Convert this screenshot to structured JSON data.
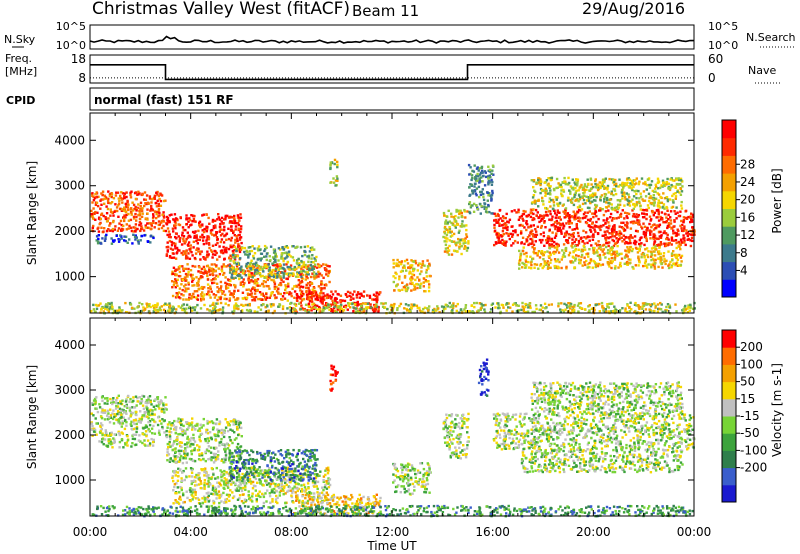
{
  "header": {
    "station": "Christmas Valley West (fitACF)",
    "beam": "Beam 11",
    "date": "29/Aug/2016"
  },
  "noise_panel": {
    "left_label": "N.Sky",
    "right_label": "N.Search",
    "left_ticks": [
      "10^5",
      "10^0"
    ],
    "right_ticks": [
      "10^5",
      "10^0"
    ]
  },
  "freq_panel": {
    "left_label_1": "Freq.",
    "left_label_2": "[MHz]",
    "right_label": "Nave",
    "left_ticks": [
      "18",
      "8"
    ],
    "right_ticks": [
      "60",
      "0"
    ],
    "freq_steps": [
      {
        "start_hour": 0,
        "end_hour": 3,
        "value": 14.5
      },
      {
        "start_hour": 3,
        "end_hour": 15,
        "value": 9.3
      },
      {
        "start_hour": 15,
        "end_hour": 24,
        "value": 14.5
      }
    ],
    "nave_level": 11
  },
  "cpid": {
    "label": "CPID",
    "text": "normal (fast) 151 RF"
  },
  "chart_data": [
    {
      "type": "heatmap",
      "name": "Power",
      "ylabel": "Slant Range [km]",
      "yticks": [
        "1000",
        "2000",
        "3000",
        "4000"
      ],
      "ylim": [
        200,
        4600
      ],
      "xlim": [
        0,
        24
      ],
      "colorbar_label": "Power [dB]",
      "colorbar_ticks": [
        "4",
        "8",
        "12",
        "16",
        "20",
        "24",
        "28"
      ],
      "colorbar_colors": [
        "#0000ff",
        "#2c4eb5",
        "#3c7a8c",
        "#4f9a60",
        "#9bcc3c",
        "#f5d600",
        "#f4a000",
        "#ff6c00",
        "#ff2a00",
        "#ff0000"
      ],
      "echo_regions": [
        {
          "t0": 0.0,
          "t1": 3.0,
          "r0": 2000,
          "r1": 2900,
          "level": 0.8
        },
        {
          "t0": 0.2,
          "t1": 2.5,
          "r0": 1750,
          "r1": 1950,
          "level": 0.2
        },
        {
          "t0": 3.0,
          "t1": 6.0,
          "r0": 1400,
          "r1": 2400,
          "level": 0.9
        },
        {
          "t0": 3.2,
          "t1": 9.5,
          "r0": 500,
          "r1": 1300,
          "level": 0.75
        },
        {
          "t0": 5.5,
          "t1": 9.0,
          "r0": 1000,
          "r1": 1700,
          "level": 0.4
        },
        {
          "t0": 8.0,
          "t1": 11.5,
          "r0": 250,
          "r1": 700,
          "level": 0.95
        },
        {
          "t0": 9.5,
          "t1": 9.8,
          "r0": 3000,
          "r1": 3600,
          "level": 0.5
        },
        {
          "t0": 12.0,
          "t1": 13.5,
          "r0": 700,
          "r1": 1400,
          "level": 0.6
        },
        {
          "t0": 14.0,
          "t1": 15.0,
          "r0": 1500,
          "r1": 2500,
          "level": 0.55
        },
        {
          "t0": 15.0,
          "t1": 16.0,
          "r0": 2400,
          "r1": 3500,
          "level": 0.3
        },
        {
          "t0": 16.0,
          "t1": 24.0,
          "r0": 1700,
          "r1": 2500,
          "level": 0.9
        },
        {
          "t0": 17.0,
          "t1": 23.5,
          "r0": 1200,
          "r1": 1700,
          "level": 0.6
        },
        {
          "t0": 17.5,
          "t1": 23.5,
          "r0": 2500,
          "r1": 3200,
          "level": 0.5
        },
        {
          "t0": 0.0,
          "t1": 24.0,
          "r0": 220,
          "r1": 450,
          "level": 0.5
        }
      ]
    },
    {
      "type": "heatmap",
      "name": "Velocity",
      "ylabel": "Slant Range [km]",
      "yticks": [
        "1000",
        "2000",
        "3000",
        "4000"
      ],
      "ylim": [
        200,
        4600
      ],
      "xlim": [
        0,
        24
      ],
      "colorbar_label": "Velocity [m s-1]",
      "colorbar_ticks": [
        "200",
        "100",
        "50",
        "15",
        "-15",
        "-50",
        "-100",
        "-200"
      ],
      "colorbar_colors": [
        "#1a1ad0",
        "#3a5ecc",
        "#2f7f4c",
        "#3ca33c",
        "#77d436",
        "#c0c0c0",
        "#f5d600",
        "#f4a000",
        "#ff6c00",
        "#ff0000"
      ],
      "echo_regions": [
        {
          "t0": 0.0,
          "t1": 3.0,
          "r0": 2000,
          "r1": 2900,
          "level": 0.5
        },
        {
          "t0": 0.2,
          "t1": 2.5,
          "r0": 1750,
          "r1": 1950,
          "level": 0.5
        },
        {
          "t0": 3.0,
          "t1": 6.0,
          "r0": 1400,
          "r1": 2400,
          "level": 0.5
        },
        {
          "t0": 3.2,
          "t1": 9.5,
          "r0": 500,
          "r1": 1300,
          "level": 0.55
        },
        {
          "t0": 5.5,
          "t1": 9.0,
          "r0": 1000,
          "r1": 1700,
          "level": 0.25
        },
        {
          "t0": 8.0,
          "t1": 11.5,
          "r0": 250,
          "r1": 700,
          "level": 0.65
        },
        {
          "t0": 9.5,
          "t1": 9.8,
          "r0": 3000,
          "r1": 3600,
          "level": 0.95
        },
        {
          "t0": 12.0,
          "t1": 13.5,
          "r0": 700,
          "r1": 1400,
          "level": 0.5
        },
        {
          "t0": 14.0,
          "t1": 15.0,
          "r0": 1500,
          "r1": 2500,
          "level": 0.5
        },
        {
          "t0": 15.4,
          "t1": 15.8,
          "r0": 2900,
          "r1": 3700,
          "level": 0.05
        },
        {
          "t0": 16.0,
          "t1": 24.0,
          "r0": 1700,
          "r1": 2500,
          "level": 0.5
        },
        {
          "t0": 17.0,
          "t1": 23.5,
          "r0": 1200,
          "r1": 1700,
          "level": 0.5
        },
        {
          "t0": 17.5,
          "t1": 23.5,
          "r0": 2500,
          "r1": 3200,
          "level": 0.5
        },
        {
          "t0": 0.0,
          "t1": 24.0,
          "r0": 220,
          "r1": 450,
          "level": 0.3
        }
      ]
    }
  ],
  "xaxis": {
    "label": "Time UT",
    "ticks": [
      "00:00",
      "04:00",
      "08:00",
      "12:00",
      "16:00",
      "20:00",
      "00:00"
    ]
  }
}
